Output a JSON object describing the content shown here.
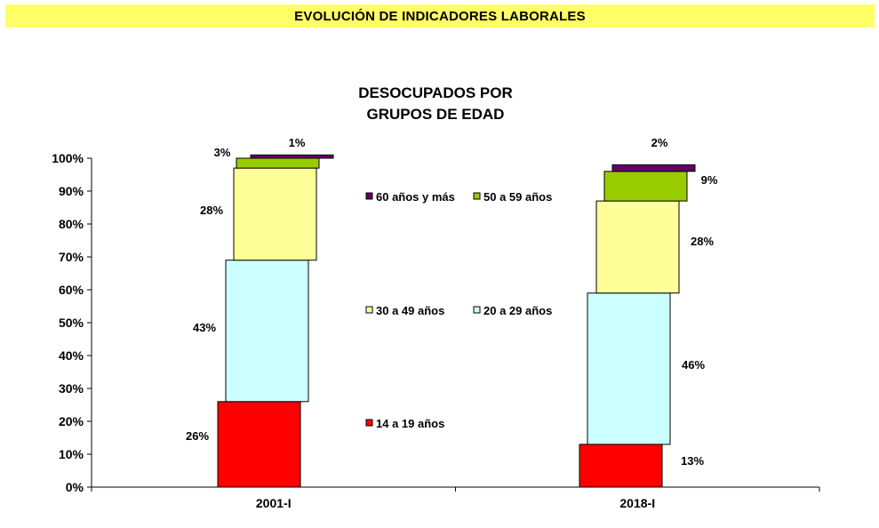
{
  "header": {
    "title": "EVOLUCIÓN DE INDICADORES LABORALES"
  },
  "chart_data": {
    "type": "bar",
    "stacked": true,
    "title_line1": "DESOCUPADOS POR",
    "title_line2": "GRUPOS DE EDAD",
    "categories": [
      "2001-I",
      "2018-I"
    ],
    "ylim": [
      0,
      100
    ],
    "yticks": [
      "0%",
      "10%",
      "20%",
      "30%",
      "40%",
      "50%",
      "60%",
      "70%",
      "80%",
      "90%",
      "100%"
    ],
    "series": [
      {
        "name": "14 a 19 años",
        "color": "#ff0000",
        "values": [
          26,
          13
        ],
        "labels": [
          "26%",
          "13%"
        ]
      },
      {
        "name": "20 a 29 años",
        "color": "#ccffff",
        "values": [
          43,
          46
        ],
        "labels": [
          "43%",
          "46%"
        ]
      },
      {
        "name": "30 a 49 años",
        "color": "#ffff99",
        "values": [
          28,
          28
        ],
        "labels": [
          "28%",
          "28%"
        ]
      },
      {
        "name": "50 a 59 años",
        "color": "#99cc00",
        "values": [
          3,
          9
        ],
        "labels": [
          "3%",
          "9%"
        ]
      },
      {
        "name": "60 años y más",
        "color": "#660066",
        "values": [
          1,
          2
        ],
        "labels": [
          "1%",
          "2%"
        ]
      }
    ]
  }
}
